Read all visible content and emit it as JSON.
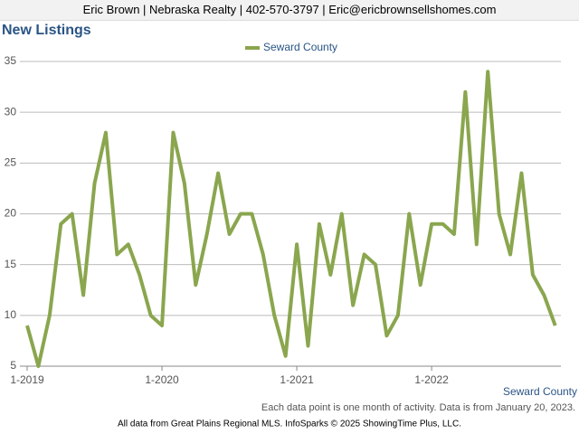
{
  "header": "Eric Brown | Nebraska Realty | 402-570-3797 | Eric@ericbrownsellshomes.com",
  "footer": "All data from Great Plains Regional MLS. InfoSparks © 2025 ShowingTime Plus, LLC.",
  "chart_data": {
    "type": "line",
    "title": "New Listings",
    "region_label": "Seward County",
    "note": "Each data point is one month of activity. Data is from January 20, 2023.",
    "categories": [
      "1-2019",
      null,
      null,
      null,
      null,
      null,
      null,
      null,
      null,
      null,
      null,
      null,
      "1-2020",
      null,
      null,
      null,
      null,
      null,
      null,
      null,
      null,
      null,
      null,
      null,
      "1-2021",
      null,
      null,
      null,
      null,
      null,
      null,
      null,
      null,
      null,
      null,
      null,
      "1-2022",
      null,
      null,
      null,
      null,
      null,
      null,
      null,
      null,
      null,
      null,
      null
    ],
    "series": [
      {
        "name": "Seward County",
        "color": "#8aa64e",
        "values": [
          9,
          5,
          10,
          19,
          20,
          12,
          23,
          28,
          16,
          17,
          14,
          10,
          9,
          28,
          23,
          13,
          18,
          24,
          18,
          20,
          20,
          16,
          10,
          6,
          17,
          7,
          19,
          14,
          20,
          11,
          16,
          15,
          8,
          10,
          20,
          13,
          19,
          19,
          18,
          32,
          17,
          34,
          20,
          16,
          24,
          14,
          12,
          9
        ]
      }
    ],
    "ylim": [
      5,
      35
    ],
    "yticks": [
      5,
      10,
      15,
      20,
      25,
      30,
      35
    ],
    "grid": true
  }
}
